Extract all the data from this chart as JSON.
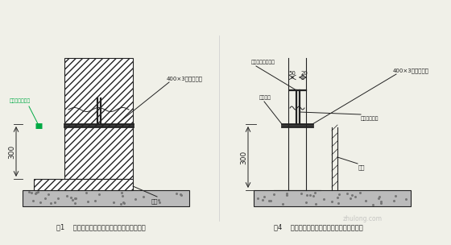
{
  "bg_color": "#f0f0e8",
  "line_color": "#222222",
  "green_color": "#00aa44",
  "caption1": "图1    地下室外墙水平施工缝钢板止水带大样图",
  "caption2": "图4    地下室外墙水平施工缝钢板止水带大样图",
  "label_400x3_1": "400×3钢板止水带",
  "label_400x3_2": "400×3钢板止水带",
  "label_mban1": "模板",
  "label_mban2": "模板",
  "label_swt": "遇水膨胀止水条",
  "label_hj": "焊缝钢筋",
  "label_wljl": "阻尼止水钢筋网笼",
  "label_zgb": "阻尼止水钢板",
  "label_300": "300",
  "label_50": "50",
  "label_20": "20",
  "watermark": "zhulong.com",
  "font_caption": 6.0,
  "font_label": 5.0,
  "font_dim": 6.5
}
